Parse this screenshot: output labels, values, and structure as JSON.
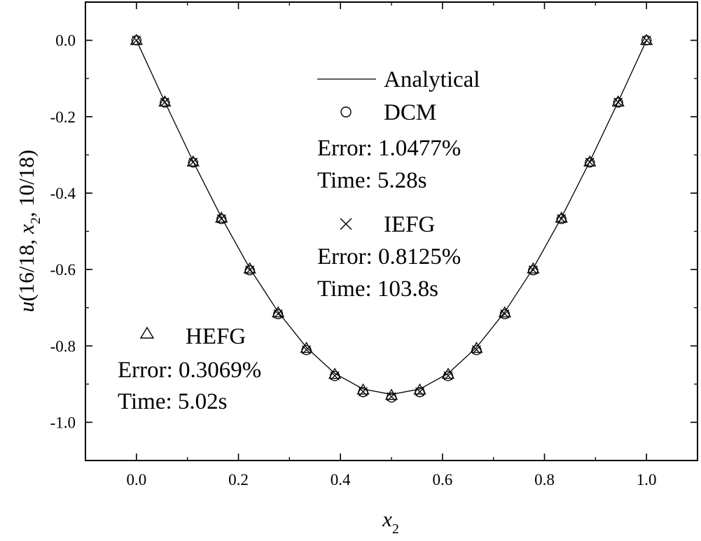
{
  "chart_data": {
    "type": "line",
    "title": "",
    "xlabel_main": "x",
    "xlabel_sub": "2",
    "ylabel_parts": {
      "func": "u",
      "open": "(16/18, ",
      "var": "x",
      "sub": "2",
      "close": ", 10/18)"
    },
    "xlim": [
      -0.1,
      1.1
    ],
    "ylim": [
      -1.1,
      0.1
    ],
    "xticks": [
      "0.0",
      "0.2",
      "0.4",
      "0.6",
      "0.8",
      "1.0"
    ],
    "yticks": [
      "0.0",
      "-0.2",
      "-0.4",
      "-0.6",
      "-0.8",
      "-1.0"
    ],
    "grid": false,
    "x": [
      0.0,
      0.0556,
      0.1111,
      0.1667,
      0.2222,
      0.2778,
      0.3333,
      0.3889,
      0.4444,
      0.5,
      0.5556,
      0.6111,
      0.6667,
      0.7222,
      0.7778,
      0.8333,
      0.8889,
      0.9444,
      1.0
    ],
    "series": [
      {
        "name": "Analytical",
        "marker": "line",
        "values": [
          0.0,
          -0.161,
          -0.317,
          -0.464,
          -0.597,
          -0.711,
          -0.804,
          -0.872,
          -0.913,
          -0.927,
          -0.913,
          -0.872,
          -0.804,
          -0.711,
          -0.597,
          -0.464,
          -0.317,
          -0.161,
          0.0
        ]
      },
      {
        "name": "DCM",
        "marker": "circle",
        "error": "Error: 1.0477%",
        "time": "Time: 5.28s",
        "values": [
          0.0,
          -0.163,
          -0.32,
          -0.468,
          -0.602,
          -0.717,
          -0.811,
          -0.879,
          -0.921,
          -0.935,
          -0.921,
          -0.879,
          -0.811,
          -0.717,
          -0.602,
          -0.468,
          -0.32,
          -0.163,
          0.0
        ]
      },
      {
        "name": "IEFG",
        "marker": "cross",
        "error": "Error: 0.8125%",
        "time": "Time: 103.8s",
        "values": [
          0.0,
          -0.162,
          -0.319,
          -0.467,
          -0.601,
          -0.716,
          -0.81,
          -0.878,
          -0.92,
          -0.933,
          -0.92,
          -0.878,
          -0.81,
          -0.716,
          -0.601,
          -0.467,
          -0.319,
          -0.162,
          0.0
        ]
      },
      {
        "name": "HEFG",
        "marker": "triangle",
        "error": "Error: 0.3069%",
        "time": "Time: 5.02s",
        "values": [
          0.0,
          -0.161,
          -0.318,
          -0.465,
          -0.598,
          -0.713,
          -0.806,
          -0.874,
          -0.915,
          -0.929,
          -0.915,
          -0.874,
          -0.806,
          -0.713,
          -0.598,
          -0.465,
          -0.318,
          -0.161,
          0.0
        ]
      }
    ]
  }
}
